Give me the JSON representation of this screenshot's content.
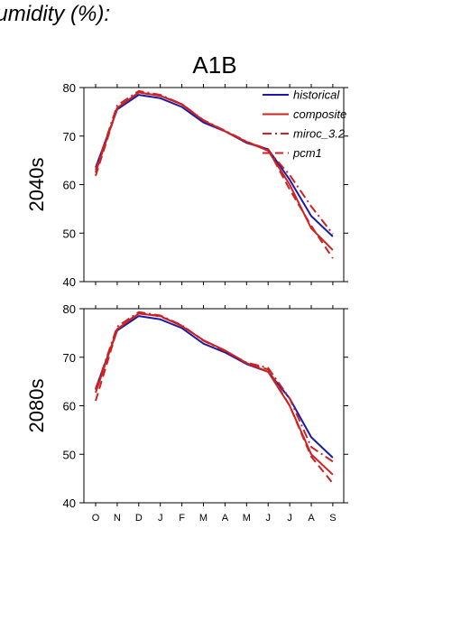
{
  "figure_title": "humidity (%):",
  "chart_data": {
    "type": "line",
    "scenario": "A1B",
    "categories": [
      "O",
      "N",
      "D",
      "J",
      "F",
      "M",
      "A",
      "M",
      "J",
      "J",
      "A",
      "S"
    ],
    "ylim": [
      40,
      80
    ],
    "yticks": [
      40,
      50,
      60,
      70,
      80
    ],
    "legend_position": "top-right",
    "legend": [
      {
        "name": "historical",
        "color": "#1a1aaa",
        "dash": "solid"
      },
      {
        "name": "composite",
        "color": "#cc2222",
        "dash": "solid"
      },
      {
        "name": "miroc_3.2",
        "color": "#cc2222",
        "dash": "dashdot"
      },
      {
        "name": "pcm1",
        "color": "#cc2222",
        "dash": "dashed"
      }
    ],
    "panels": [
      {
        "label": "2040s",
        "series": [
          {
            "name": "historical",
            "values": [
              63.5,
              75.5,
              78.5,
              77.8,
              76.0,
              72.8,
              71.0,
              68.6,
              67.3,
              61.0,
              53.5,
              49.3
            ]
          },
          {
            "name": "composite",
            "values": [
              62.5,
              75.8,
              79.0,
              78.3,
              76.5,
              73.2,
              71.0,
              68.8,
              67.0,
              60.0,
              51.0,
              46.5
            ]
          },
          {
            "name": "miroc_3.2",
            "values": [
              63.0,
              76.3,
              79.3,
              78.5,
              76.6,
              73.3,
              71.1,
              68.9,
              67.0,
              62.0,
              55.5,
              49.8
            ]
          },
          {
            "name": "pcm1",
            "values": [
              61.8,
              75.8,
              79.0,
              78.3,
              76.6,
              73.2,
              71.0,
              68.8,
              67.3,
              59.0,
              51.5,
              44.8
            ]
          }
        ]
      },
      {
        "label": "2080s",
        "series": [
          {
            "name": "historical",
            "values": [
              63.5,
              75.5,
              78.5,
              77.8,
              76.0,
              72.8,
              71.0,
              68.6,
              67.0,
              61.5,
              53.5,
              49.3
            ]
          },
          {
            "name": "composite",
            "values": [
              62.7,
              75.8,
              79.0,
              78.5,
              76.4,
              73.5,
              71.4,
              68.8,
              67.0,
              60.0,
              50.0,
              45.8
            ]
          },
          {
            "name": "miroc_3.2",
            "values": [
              63.3,
              76.3,
              79.3,
              78.6,
              76.6,
              73.4,
              71.3,
              68.9,
              67.8,
              61.5,
              51.5,
              48.5
            ]
          },
          {
            "name": "pcm1",
            "values": [
              61.0,
              75.7,
              79.2,
              78.4,
              76.5,
              73.5,
              71.3,
              68.8,
              67.5,
              60.0,
              49.5,
              44.0
            ]
          }
        ]
      }
    ]
  }
}
